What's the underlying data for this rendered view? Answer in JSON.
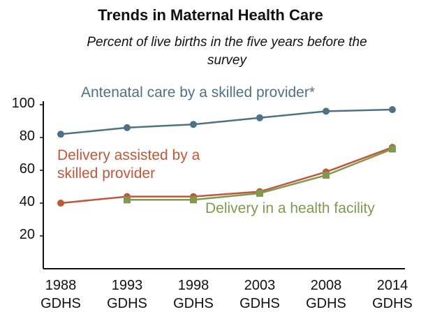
{
  "chart_data": {
    "type": "line",
    "title": "Trends in Maternal Health Care",
    "subtitle": "Percent of live births in the five years before the survey",
    "categories": [
      "1988 GDHS",
      "1993 GDHS",
      "1998 GDHS",
      "2003 GDHS",
      "2008 GDHS",
      "2014 GDHS"
    ],
    "series": [
      {
        "name": "Antenatal care by a skilled provider*",
        "color": "#4e7283",
        "values": [
          82,
          86,
          88,
          92,
          96,
          97
        ]
      },
      {
        "name": "Delivery assisted by a skilled provider",
        "color": "#c0573a",
        "values": [
          40,
          44,
          44,
          47,
          59,
          74
        ]
      },
      {
        "name": "Delivery in a health facility",
        "color": "#7f9a4e",
        "values": [
          null,
          42,
          42,
          46,
          57,
          73
        ]
      }
    ],
    "ylim": [
      0,
      100
    ],
    "yticks": [
      20,
      40,
      60,
      80,
      100
    ],
    "grid": false
  }
}
